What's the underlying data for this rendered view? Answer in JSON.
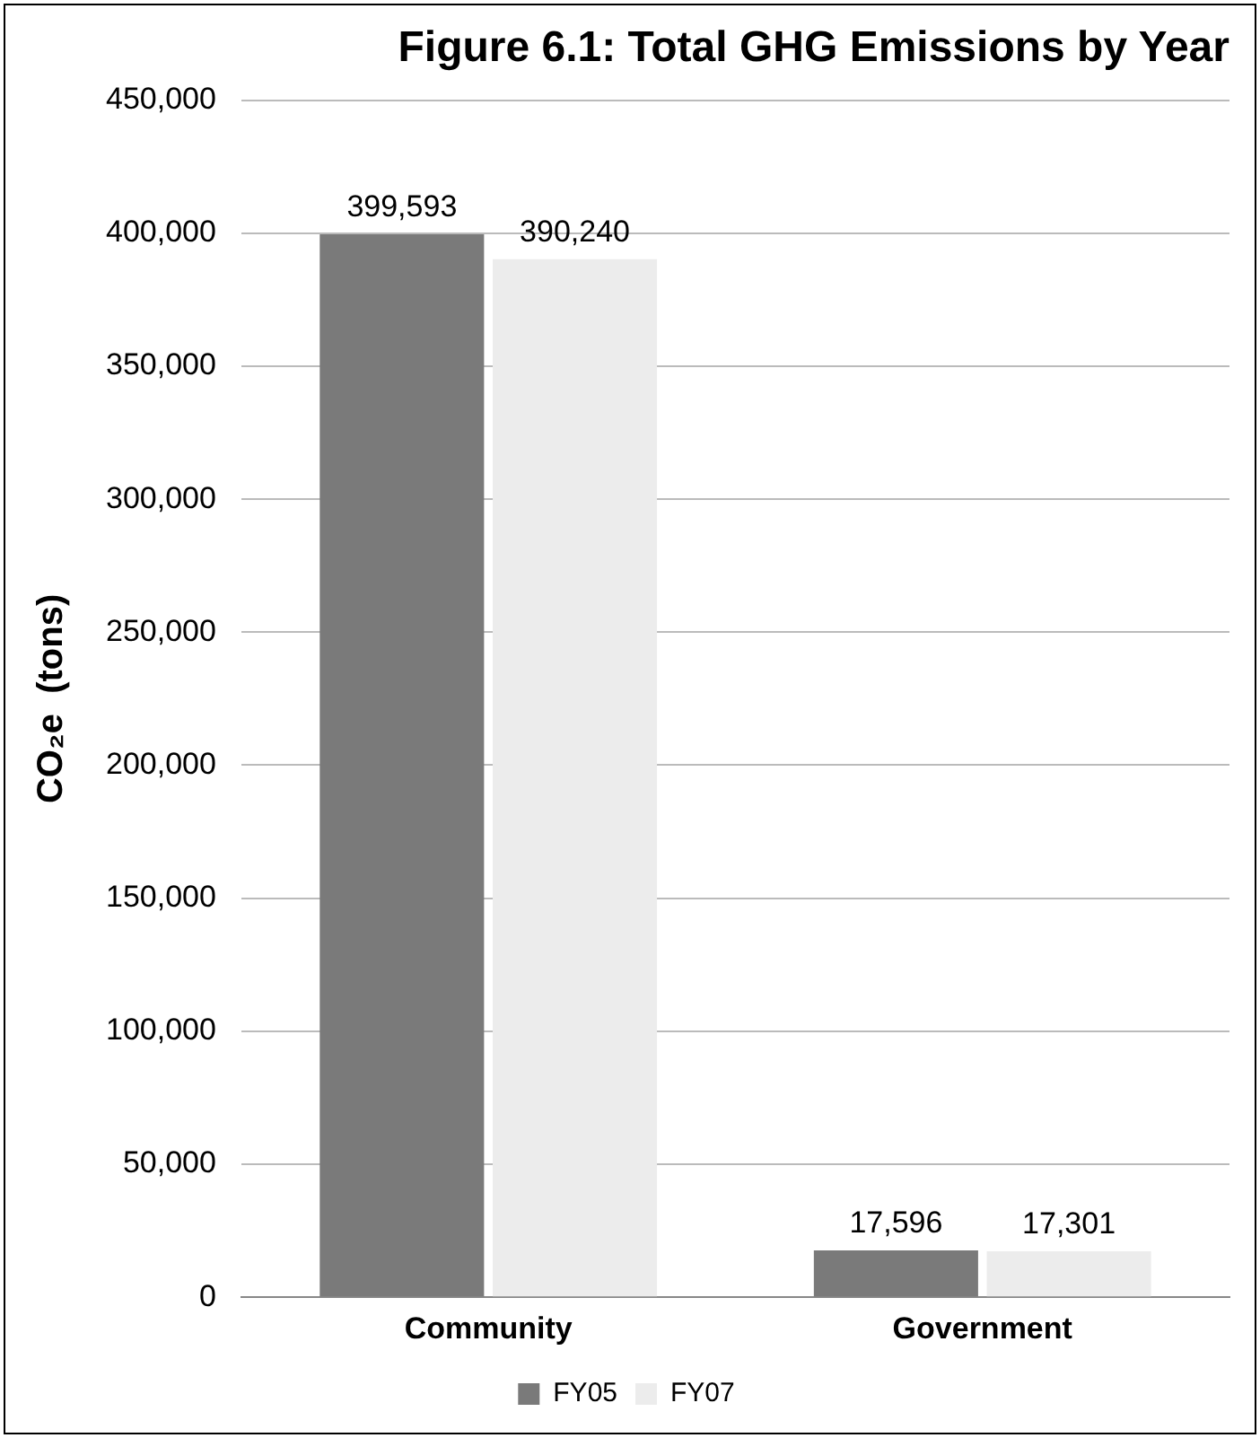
{
  "chart_data": {
    "type": "bar",
    "title": "Figure 6.1: Total GHG Emissions by Year",
    "ylabel": "CO₂e  (tons)",
    "categories": [
      "Community",
      "Government"
    ],
    "series": [
      {
        "name": "FY05",
        "color": "#7a7a7a",
        "values": [
          399593,
          17596
        ],
        "value_labels": [
          "399,593",
          "17,596"
        ]
      },
      {
        "name": "FY07",
        "color": "#ececec",
        "values": [
          390240,
          17301
        ],
        "value_labels": [
          "390,240",
          "17,301"
        ]
      }
    ],
    "ylim": [
      0,
      450000
    ],
    "yticks": [
      {
        "value": 0,
        "label": "0"
      },
      {
        "value": 50000,
        "label": "50,000"
      },
      {
        "value": 100000,
        "label": "100,000"
      },
      {
        "value": 150000,
        "label": "150,000"
      },
      {
        "value": 200000,
        "label": "200,000"
      },
      {
        "value": 250000,
        "label": "250,000"
      },
      {
        "value": 300000,
        "label": "300,000"
      },
      {
        "value": 350000,
        "label": "350,000"
      },
      {
        "value": 400000,
        "label": "400,000"
      },
      {
        "value": 450000,
        "label": "450,000"
      }
    ],
    "grid": "y",
    "legend": "bottom"
  }
}
